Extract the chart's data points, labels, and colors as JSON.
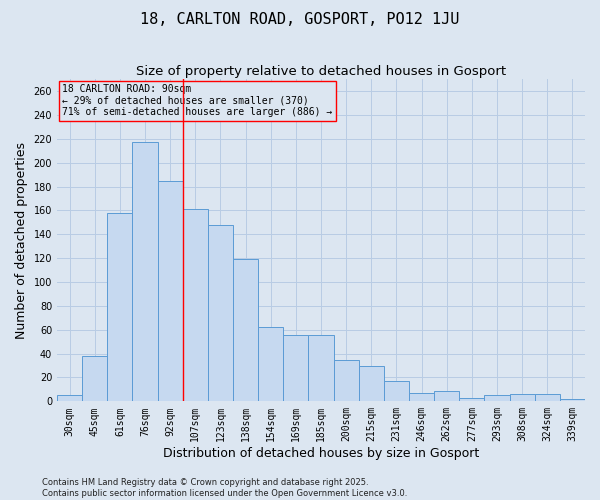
{
  "title": "18, CARLTON ROAD, GOSPORT, PO12 1JU",
  "subtitle": "Size of property relative to detached houses in Gosport",
  "xlabel": "Distribution of detached houses by size in Gosport",
  "ylabel": "Number of detached properties",
  "categories": [
    "30sqm",
    "45sqm",
    "61sqm",
    "76sqm",
    "92sqm",
    "107sqm",
    "123sqm",
    "138sqm",
    "154sqm",
    "169sqm",
    "185sqm",
    "200sqm",
    "215sqm",
    "231sqm",
    "246sqm",
    "262sqm",
    "277sqm",
    "293sqm",
    "308sqm",
    "324sqm",
    "339sqm"
  ],
  "values": [
    5,
    38,
    158,
    217,
    185,
    161,
    148,
    119,
    62,
    56,
    56,
    35,
    30,
    17,
    7,
    9,
    3,
    5,
    6,
    6,
    2
  ],
  "bar_color": "#c6d9f0",
  "bar_edge_color": "#5b9bd5",
  "grid_color": "#b8cce4",
  "background_color": "#dce6f1",
  "property_label": "18 CARLTON ROAD: 90sqm",
  "pct_smaller": 29,
  "n_smaller": 370,
  "pct_larger": 71,
  "n_larger": 886,
  "vline_x": 4.5,
  "footer": "Contains HM Land Registry data © Crown copyright and database right 2025.\nContains public sector information licensed under the Open Government Licence v3.0.",
  "ylim": [
    0,
    270
  ],
  "yticks": [
    0,
    20,
    40,
    60,
    80,
    100,
    120,
    140,
    160,
    180,
    200,
    220,
    240,
    260
  ],
  "title_fontsize": 11,
  "subtitle_fontsize": 9.5,
  "tick_fontsize": 7,
  "ylabel_fontsize": 9,
  "xlabel_fontsize": 9,
  "ann_fontsize": 7,
  "footer_fontsize": 6
}
